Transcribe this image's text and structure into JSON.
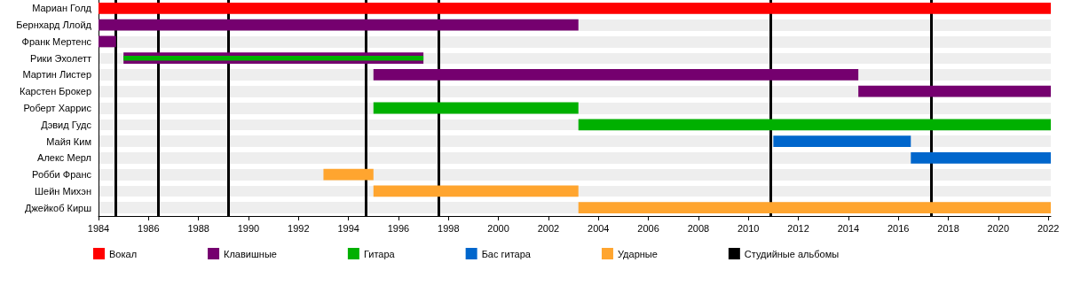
{
  "chart_data": {
    "type": "bar",
    "orientation": "horizontal",
    "categories": [
      "Мариан Голд",
      "Бернхард Ллойд",
      "Франк Мертенс",
      "Рики Эхолетт",
      "Мартин Листер",
      "Карстен Брокер",
      "Роберт Харрис",
      "Дэвид Гудс",
      "Майя Ким",
      "Алекс Мерл",
      "Робби Франс",
      "Шейн Михэн",
      "Джейкоб Кирш"
    ],
    "series": [
      {
        "name": "Вокал",
        "color": "#ff0000",
        "base": [
          1984,
          null,
          null,
          null,
          null,
          null,
          null,
          null,
          null,
          null,
          null,
          null,
          null
        ],
        "values": [
          38.1,
          null,
          null,
          null,
          null,
          null,
          null,
          null,
          null,
          null,
          null,
          null,
          null
        ]
      },
      {
        "name": "Клавишные",
        "color": "#75006f",
        "base": [
          null,
          1984,
          1984,
          1985,
          1995,
          2014.4,
          null,
          null,
          null,
          null,
          null,
          null,
          null
        ],
        "values": [
          null,
          19.2,
          0.7,
          12,
          19.4,
          7.7,
          null,
          null,
          null,
          null,
          null,
          null,
          null
        ]
      },
      {
        "name": "Гитара",
        "color": "#00b000",
        "base": [
          null,
          null,
          null,
          1985,
          null,
          null,
          1995,
          2003.2,
          null,
          null,
          null,
          null,
          null
        ],
        "values": [
          null,
          null,
          null,
          12,
          null,
          null,
          8.2,
          18.9,
          null,
          null,
          null,
          null,
          null
        ]
      },
      {
        "name": "Бас гитара",
        "color": "#0066cc",
        "base": [
          null,
          null,
          null,
          null,
          null,
          null,
          null,
          null,
          2011,
          2016.5,
          null,
          null,
          null
        ],
        "values": [
          null,
          null,
          null,
          null,
          null,
          null,
          null,
          null,
          5.5,
          5.6,
          null,
          null,
          null
        ]
      },
      {
        "name": "Ударные",
        "color": "#ffa52f",
        "base": [
          null,
          null,
          null,
          null,
          null,
          null,
          null,
          null,
          null,
          null,
          1993,
          1995,
          2003.2
        ],
        "values": [
          null,
          null,
          null,
          null,
          null,
          null,
          null,
          null,
          null,
          null,
          2,
          8.2,
          18.9
        ]
      }
    ],
    "xlim": [
      1984,
      2022.1
    ],
    "xticks": [
      1984,
      1986,
      1988,
      1990,
      1992,
      1994,
      1996,
      1998,
      2000,
      2002,
      2004,
      2006,
      2008,
      2010,
      2012,
      2014,
      2016,
      2018,
      2020,
      2022
    ],
    "ref_lines": [
      {
        "axis": "x",
        "value": 1984.7,
        "label": "Студийные альбомы",
        "color": "#000000"
      },
      {
        "axis": "x",
        "value": 1986.4,
        "color": "#000000"
      },
      {
        "axis": "x",
        "value": 1989.2,
        "color": "#000000"
      },
      {
        "axis": "x",
        "value": 1994.7,
        "color": "#000000"
      },
      {
        "axis": "x",
        "value": 1997.6,
        "color": "#000000"
      },
      {
        "axis": "x",
        "value": 2010.9,
        "color": "#000000"
      },
      {
        "axis": "x",
        "value": 2017.3,
        "color": "#000000"
      }
    ],
    "grid": true,
    "legend": "bottom left"
  }
}
